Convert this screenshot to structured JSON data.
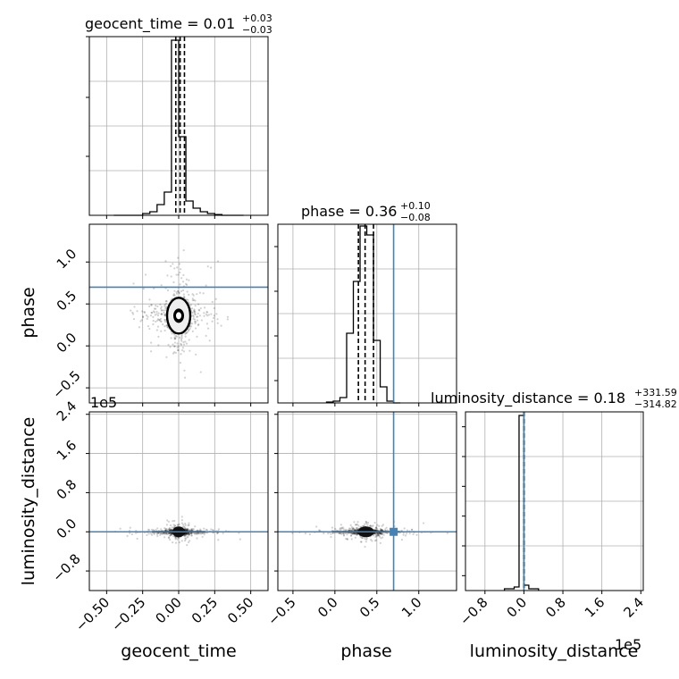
{
  "chart_data": {
    "type": "corner",
    "parameters": [
      "geocent_time",
      "phase",
      "luminosity_distance"
    ],
    "truths": {
      "phase": 0.7,
      "luminosity_distance": 0
    },
    "truth_color": "#4682b4",
    "offset_text": {
      "luminosity_distance": "1e5"
    },
    "titles": [
      {
        "param": "geocent_time",
        "prefix": "geocent_time = ",
        "value": "0.01",
        "plus": "+0.03",
        "minus": "−0.03"
      },
      {
        "param": "phase",
        "prefix": "phase = ",
        "value": "0.36",
        "plus": "+0.10",
        "minus": "−0.08"
      },
      {
        "param": "luminosity_distance",
        "prefix": "luminosity_distance = ",
        "value": "0.18",
        "plus": "+331.59",
        "minus": "−314.82"
      }
    ],
    "axes": {
      "geocent_time": {
        "range": [
          -0.62,
          0.62
        ],
        "ticks": [
          -0.5,
          -0.25,
          0.0,
          0.25,
          0.5
        ],
        "tick_labels": [
          "−0.50",
          "−0.25",
          "0.00",
          "0.25",
          "0.50"
        ],
        "label": "geocent_time"
      },
      "phase": {
        "range": [
          -0.68,
          1.45
        ],
        "ticks": [
          -0.5,
          0.0,
          0.5,
          1.0
        ],
        "tick_labels": [
          "−0.5",
          "0.0",
          "0.5",
          "1.0"
        ],
        "label": "phase"
      },
      "luminosity_distance": {
        "range": [
          -1.2,
          2.45
        ],
        "ticks": [
          -0.8,
          0.0,
          0.8,
          1.6,
          2.4
        ],
        "tick_labels": [
          "−0.8",
          "0.0",
          "0.8",
          "1.6",
          "2.4"
        ],
        "label": "luminosity_distance"
      }
    },
    "histograms": {
      "geocent_time": {
        "bin_edges": [
          -0.45,
          -0.4,
          -0.35,
          -0.3,
          -0.25,
          -0.2,
          -0.15,
          -0.1,
          -0.05,
          0.0,
          0.05,
          0.1,
          0.15,
          0.2,
          0.25,
          0.3,
          0.35,
          0.4,
          0.45
        ],
        "counts": [
          0,
          0,
          0,
          0,
          0.01,
          0.02,
          0.06,
          0.13,
          0.98,
          0.44,
          0.08,
          0.04,
          0.02,
          0.01,
          0.004,
          0,
          0,
          0
        ],
        "quantiles": [
          -0.02,
          0.01,
          0.04
        ]
      },
      "phase": {
        "bin_edges": [
          -0.1,
          -0.02,
          0.06,
          0.14,
          0.22,
          0.3,
          0.38,
          0.46,
          0.54,
          0.62,
          0.7,
          0.78
        ],
        "counts": [
          0.005,
          0.01,
          0.03,
          0.39,
          0.68,
          0.99,
          0.94,
          0.35,
          0.09,
          0.01,
          0
        ],
        "quantiles": [
          0.28,
          0.36,
          0.46
        ]
      },
      "luminosity_distance": {
        "bin_edges": [
          -0.4,
          -0.2,
          -0.1,
          0.0,
          0.1,
          0.3
        ],
        "counts": [
          0.01,
          0.02,
          0.98,
          0.03,
          0.01
        ],
        "quantiles": [
          -0.003,
          0.0,
          0.003
        ]
      }
    },
    "scatter_centers": {
      "phase_vs_geocent_time": {
        "x": 0.0,
        "y": 0.36
      },
      "luminosity_distance_vs_geocent_time": {
        "x": 0.0,
        "y": 0.0
      },
      "luminosity_distance_vs_phase": {
        "x": 0.37,
        "y": 0.0
      }
    },
    "grid": true
  }
}
